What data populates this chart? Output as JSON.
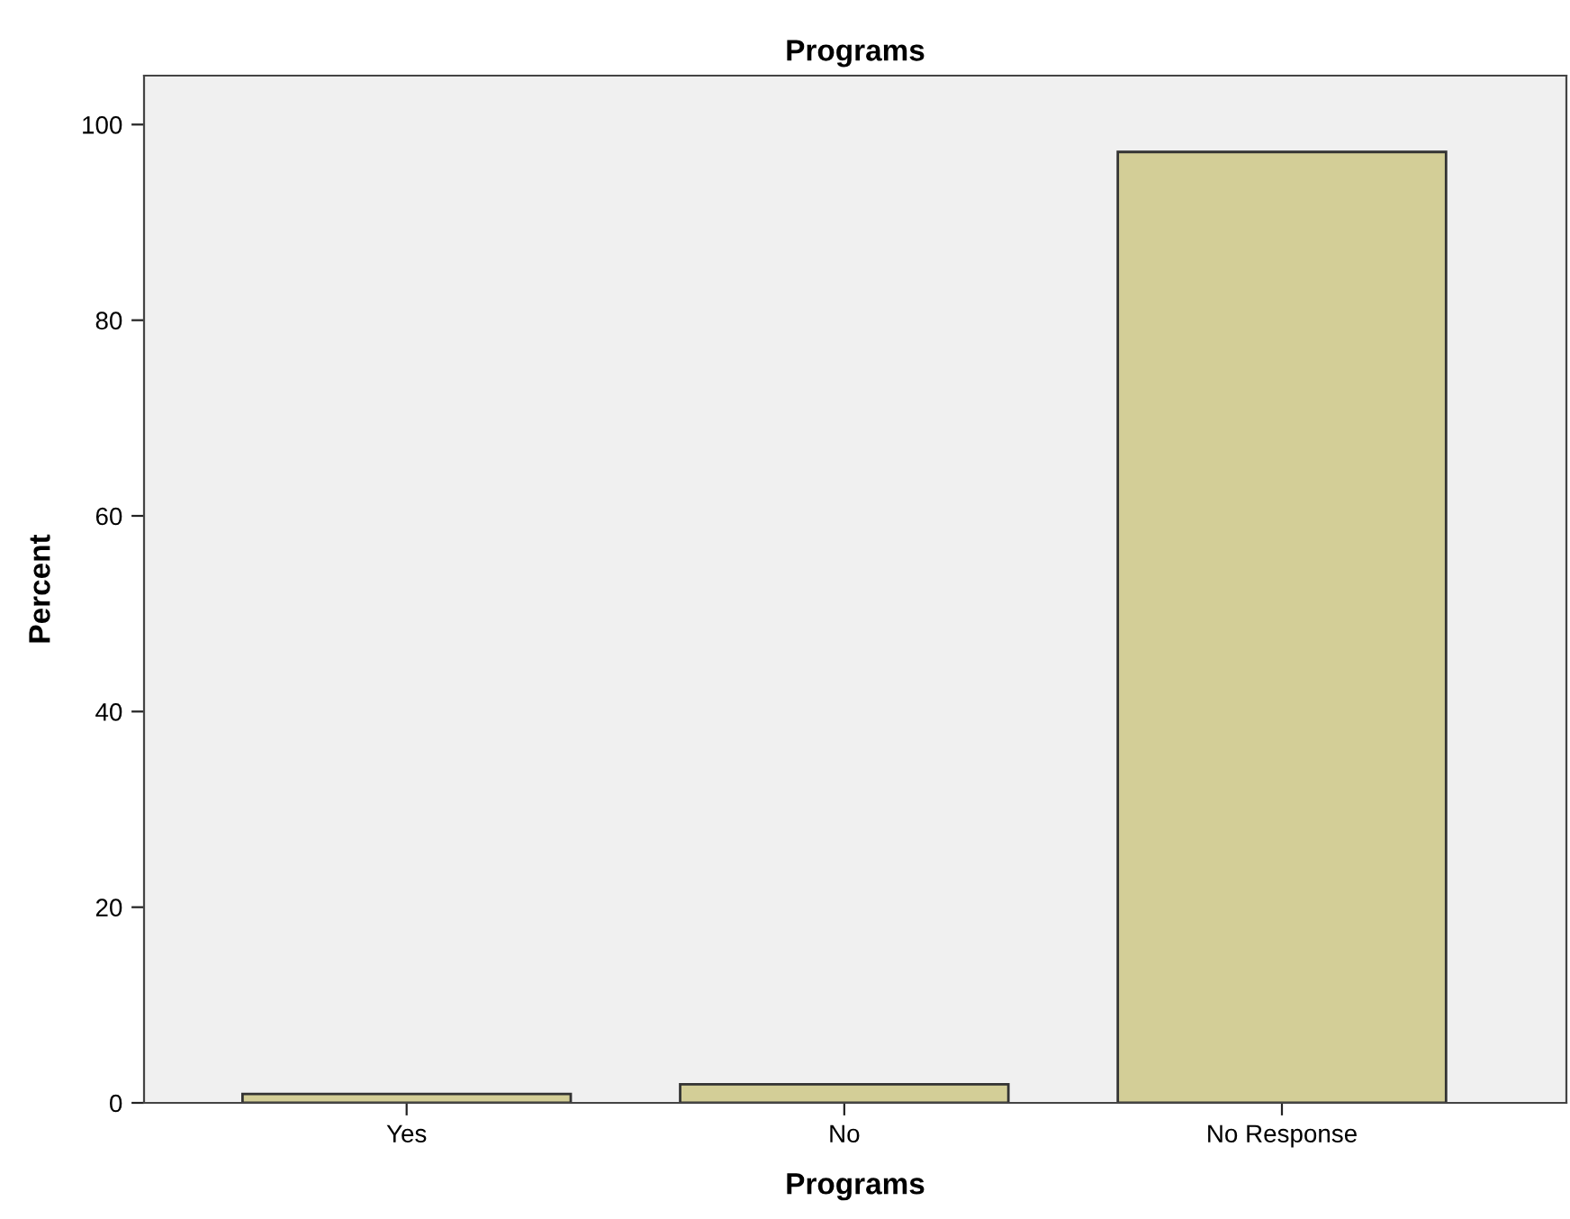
{
  "chart_data": {
    "type": "bar",
    "title": "Programs",
    "xlabel": "Programs",
    "ylabel": "Percent",
    "categories": [
      "Yes",
      "No",
      "No Response"
    ],
    "values": [
      0.9,
      1.9,
      97.2
    ],
    "color": "#d3ce97",
    "ylim": [
      0,
      105
    ],
    "yticks": [
      0,
      20,
      40,
      60,
      80,
      100
    ],
    "grid": false,
    "legend": false
  }
}
